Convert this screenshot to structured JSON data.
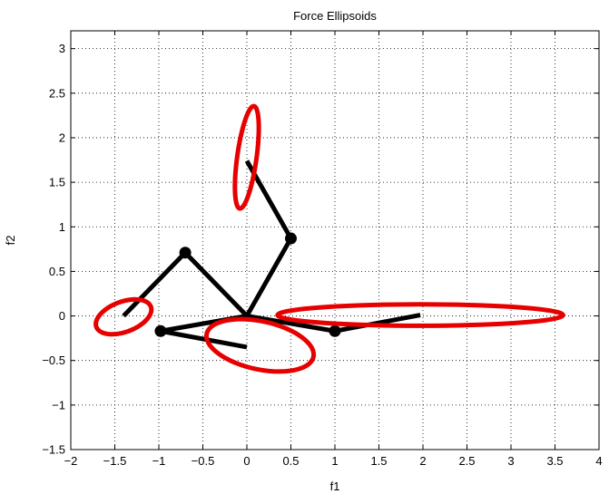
{
  "chart_data": {
    "type": "line",
    "title": "Force Ellipsoids",
    "xlabel": "f1",
    "ylabel": "f2",
    "xlim": [
      -2,
      4
    ],
    "ylim": [
      -1.5,
      3.2
    ],
    "xticks": [
      -2,
      -1.5,
      -1,
      -0.5,
      0,
      0.5,
      1,
      1.5,
      2,
      2.5,
      3,
      3.5,
      4
    ],
    "xtick_labels": [
      "−2",
      "−1.5",
      "−1",
      "−0.5",
      "0",
      "0.5",
      "1",
      "1.5",
      "2",
      "2.5",
      "3",
      "3.5",
      "4"
    ],
    "yticks": [
      -1.5,
      -1,
      -0.5,
      0,
      0.5,
      1,
      1.5,
      2,
      2.5,
      3
    ],
    "ytick_labels": [
      "−1.5",
      "−1",
      "−0.5",
      "0",
      "0.5",
      "1",
      "1.5",
      "2",
      "2.5",
      "3"
    ],
    "grid": true,
    "grid_style": "dotted",
    "link_color": "#000000",
    "ellipse_color": "#e60000",
    "arms": [
      {
        "joints": [
          [
            0,
            0
          ],
          [
            -0.7,
            0.71
          ],
          [
            -1.4,
            0.0
          ]
        ]
      },
      {
        "joints": [
          [
            0,
            0
          ],
          [
            0.5,
            0.87
          ],
          [
            0.0,
            1.74
          ]
        ]
      },
      {
        "joints": [
          [
            0,
            0
          ],
          [
            1.0,
            -0.17
          ],
          [
            1.97,
            0.01
          ]
        ]
      },
      {
        "joints": [
          [
            0,
            0
          ],
          [
            -0.98,
            -0.17
          ],
          [
            0.0,
            -0.35
          ]
        ]
      }
    ],
    "ellipses": [
      {
        "center": [
          -1.4,
          -0.01
        ],
        "semi_axis_a": 0.33,
        "semi_axis_b": 0.17,
        "angle_deg": 20
      },
      {
        "center": [
          0.0,
          1.78
        ],
        "semi_axis_a": 0.58,
        "semi_axis_b": 0.11,
        "angle_deg": 82
      },
      {
        "center": [
          1.97,
          0.01
        ],
        "semi_axis_a": 1.62,
        "semi_axis_b": 0.12,
        "angle_deg": 0
      },
      {
        "center": [
          0.15,
          -0.33
        ],
        "semi_axis_a": 0.62,
        "semi_axis_b": 0.27,
        "angle_deg": -12
      }
    ]
  }
}
